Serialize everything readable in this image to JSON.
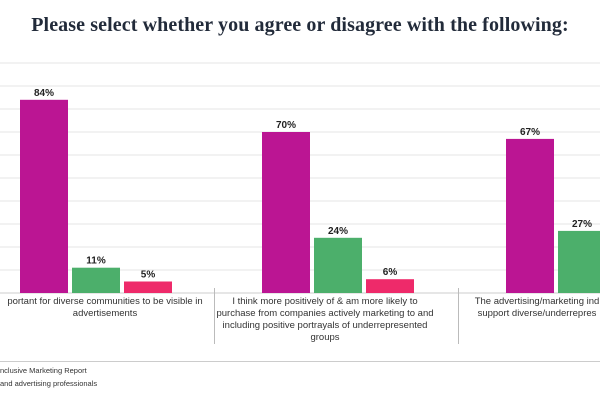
{
  "title": "Please select whether you agree or disagree with the following:",
  "chart_data": {
    "type": "bar",
    "categories": [
      "portant for diverse communities to be visible in advertisements",
      "I think more positively of & am more likely to purchase from companies actively marketing to and including positive portrayals of underrepresented groups",
      "The advertising/marketing ind support diverse/underrepres"
    ],
    "series": [
      {
        "values": [
          84,
          70,
          67
        ],
        "labels": [
          "84%",
          "70%",
          "67%"
        ],
        "color": "#bb1593"
      },
      {
        "values": [
          11,
          24,
          27
        ],
        "labels": [
          "11%",
          "24%",
          "27%"
        ],
        "color": "#4caf6b"
      },
      {
        "values": [
          5,
          6,
          null
        ],
        "labels": [
          "5%",
          "6%",
          ""
        ],
        "color": "#ee2a6a"
      }
    ],
    "ylim": [
      0,
      100
    ],
    "grid": true
  },
  "footer": {
    "line1": "nclusive Marketing Report",
    "line2": "and advertising professionals"
  },
  "colors": {
    "grid": "#e6e6e6",
    "axis": "#cccccc",
    "label": "#222222"
  }
}
